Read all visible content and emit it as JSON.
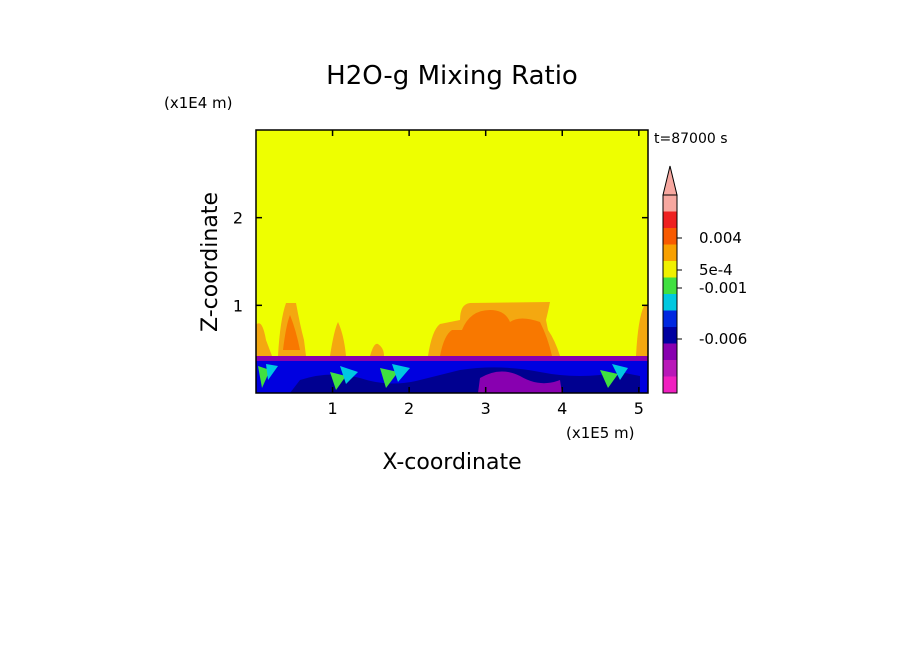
{
  "chart_data": {
    "type": "heatmap",
    "title": "H2O-g Mixing Ratio",
    "xlabel": "X-coordinate",
    "ylabel": "Z-coordinate",
    "x_unit": "(x1E5 m)",
    "y_unit": "(x1E4 m)",
    "time_label": "t=87000 s",
    "x_ticks": [
      1,
      2,
      3,
      4,
      5
    ],
    "y_ticks": [
      1,
      2
    ],
    "xlim": [
      0,
      5.12
    ],
    "ylim": [
      0,
      3
    ],
    "colorbar": {
      "tick_labels": [
        "0.004",
        "5e-4",
        "-0.001",
        "-0.006"
      ],
      "levels_top_to_bottom": [
        "#f7a8a0",
        "#ee2020",
        "#f85a00",
        "#f8a000",
        "#f0f000",
        "#40e040",
        "#00c8e0",
        "#0028e0",
        "#0000a0",
        "#8800b0",
        "#b818b8",
        "#f020c0"
      ]
    },
    "field_colors": {
      "background": "#eeff00",
      "moist_plumes": "#f87800",
      "plume_edges": "#f4a810",
      "boundary_layer": "#0000e0",
      "boundary_layer_dark": "#000090",
      "inversion_line": "#8800b0"
    }
  }
}
